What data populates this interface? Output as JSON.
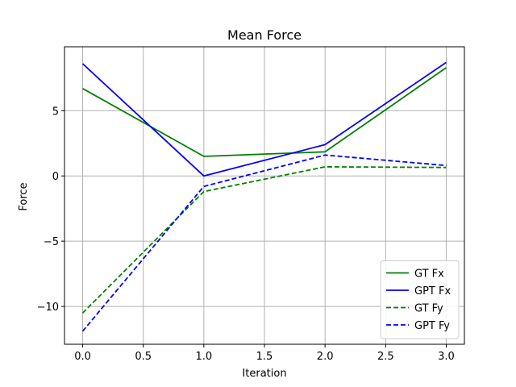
{
  "chart_data": {
    "type": "line",
    "title": "Mean Force",
    "xlabel": "Iteration",
    "ylabel": "Force",
    "xlim": [
      -0.15,
      3.15
    ],
    "ylim": [
      -12.9,
      9.9
    ],
    "xticks": [
      0.0,
      0.5,
      1.0,
      1.5,
      2.0,
      2.5,
      3.0
    ],
    "xtick_labels": [
      "0.0",
      "0.5",
      "1.0",
      "1.5",
      "2.0",
      "2.5",
      "3.0"
    ],
    "yticks": [
      -10,
      -5,
      0,
      5
    ],
    "ytick_labels": [
      "−10",
      "−5",
      "0",
      "5"
    ],
    "grid": true,
    "legend_position": "bottom-right",
    "x": [
      0,
      1,
      2,
      3
    ],
    "series": [
      {
        "name": "GT Fx",
        "values": [
          6.7,
          1.5,
          1.85,
          8.3
        ],
        "color": "#008000",
        "dashed": false
      },
      {
        "name": "GPT Fx",
        "values": [
          8.6,
          0.0,
          2.4,
          8.7
        ],
        "color": "#0000ff",
        "dashed": false
      },
      {
        "name": "GT Fy",
        "values": [
          -10.5,
          -1.2,
          0.7,
          0.65
        ],
        "color": "#008000",
        "dashed": true
      },
      {
        "name": "GPT Fy",
        "values": [
          -11.9,
          -0.8,
          1.6,
          0.8
        ],
        "color": "#0000ff",
        "dashed": true
      }
    ]
  }
}
